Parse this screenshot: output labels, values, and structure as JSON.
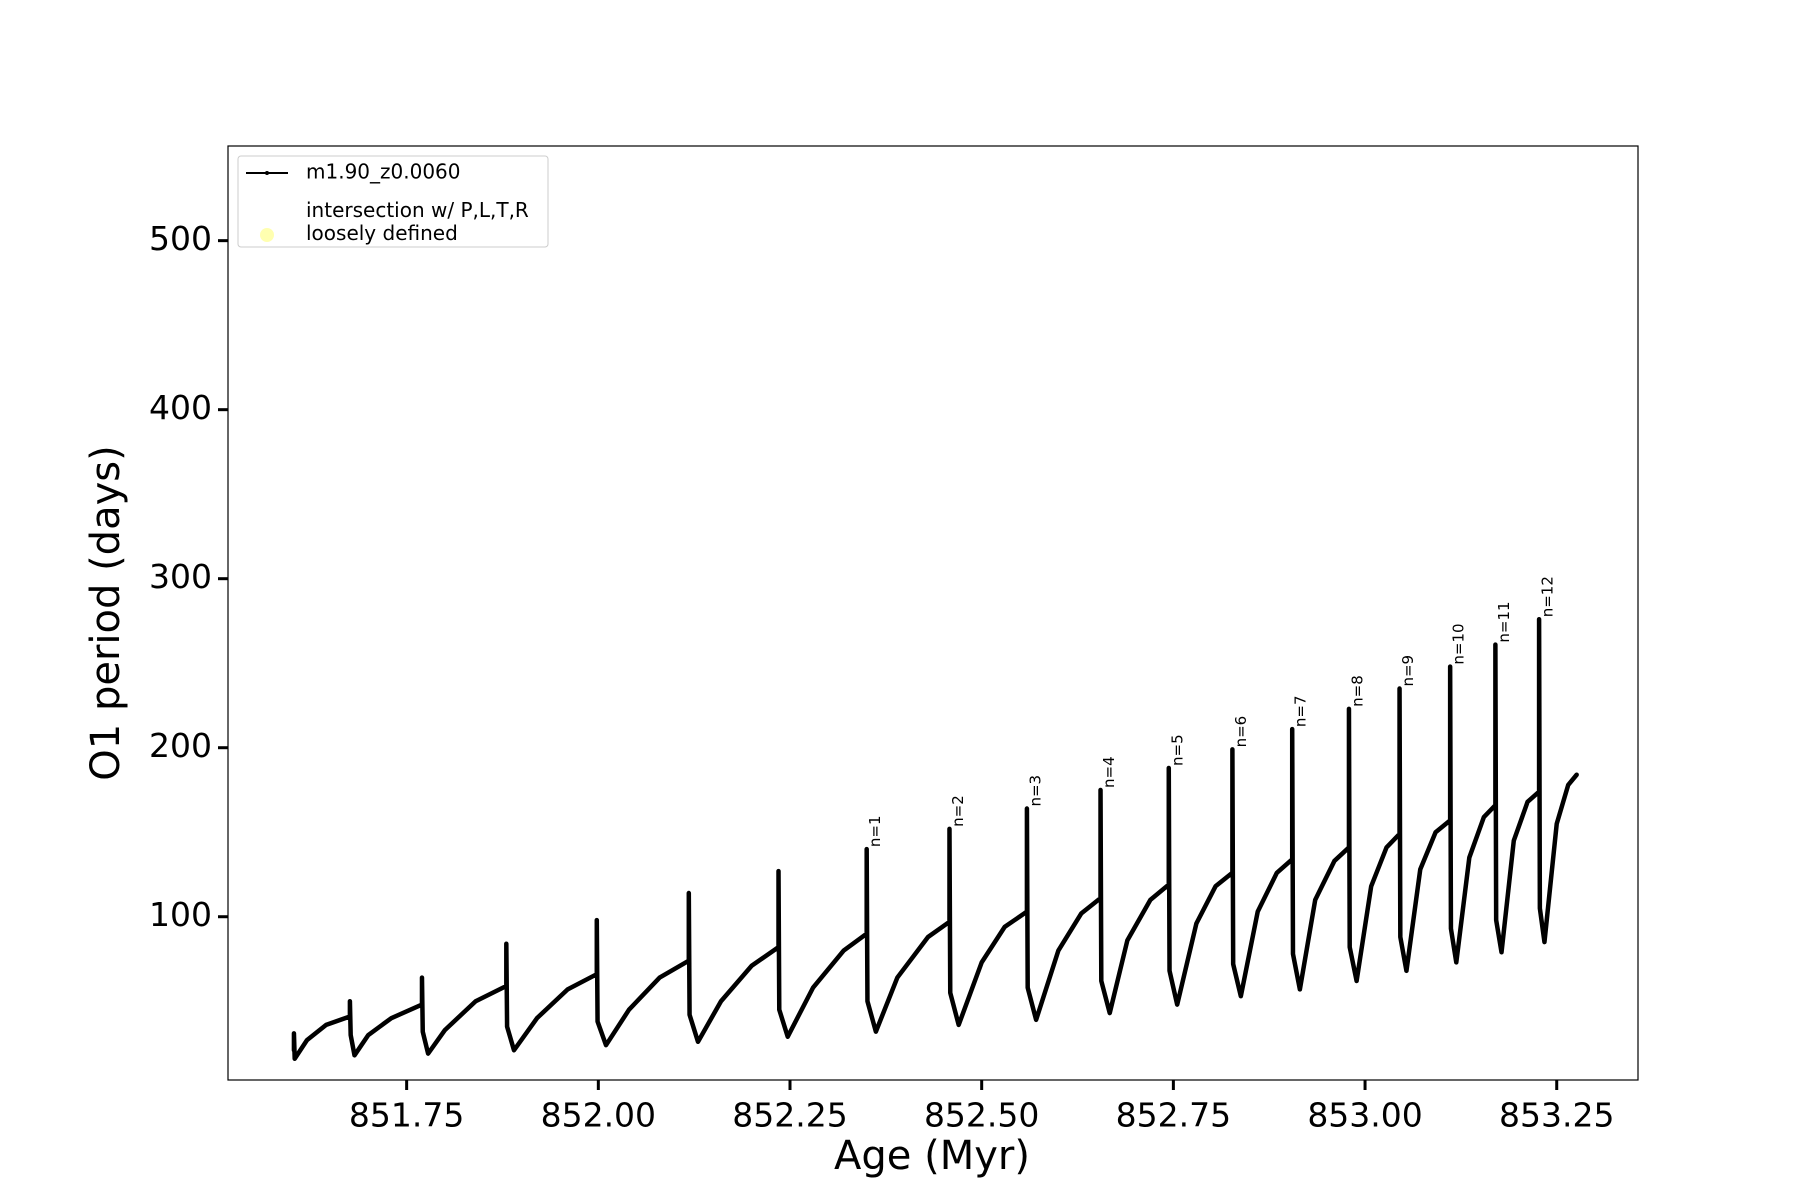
{
  "chart_data": {
    "type": "line",
    "xlabel": "Age (Myr)",
    "ylabel": "O1 period (days)",
    "xlim": [
      851.517,
      853.356
    ],
    "ylim": [
      3.4,
      556
    ],
    "xticks": [
      {
        "value": 851.75,
        "label": "851.75"
      },
      {
        "value": 852.0,
        "label": "852.00"
      },
      {
        "value": 852.25,
        "label": "852.25"
      },
      {
        "value": 852.5,
        "label": "852.50"
      },
      {
        "value": 852.75,
        "label": "852.75"
      },
      {
        "value": 853.0,
        "label": "853.00"
      },
      {
        "value": 853.25,
        "label": "853.25"
      }
    ],
    "yticks": [
      100,
      200,
      300,
      400,
      500
    ],
    "legend": "upper left",
    "series": [
      {
        "name": "m1.90_z0.0060",
        "color": "#000000",
        "x": [
          851.603,
          851.603,
          851.604,
          851.62,
          851.645,
          851.676,
          851.676,
          851.677,
          851.682,
          851.7,
          851.73,
          851.77,
          851.77,
          851.771,
          851.778,
          851.8,
          851.84,
          851.88,
          851.88,
          851.881,
          851.89,
          851.92,
          851.96,
          851.998,
          851.998,
          851.999,
          852.01,
          852.04,
          852.08,
          852.118,
          852.118,
          852.119,
          852.13,
          852.16,
          852.2,
          852.235,
          852.235,
          852.236,
          852.247,
          852.28,
          852.32,
          852.35,
          852.35,
          852.351,
          852.362,
          852.39,
          852.43,
          852.458,
          852.458,
          852.459,
          852.47,
          852.5,
          852.53,
          852.559,
          852.559,
          852.56,
          852.571,
          852.6,
          852.63,
          852.655,
          852.655,
          852.656,
          852.667,
          852.69,
          852.72,
          852.744,
          852.744,
          852.745,
          852.755,
          852.78,
          852.805,
          852.827,
          852.827,
          852.828,
          852.838,
          852.86,
          852.885,
          852.905,
          852.905,
          852.906,
          852.915,
          852.935,
          852.96,
          852.979,
          852.979,
          852.98,
          852.989,
          853.008,
          853.028,
          853.045,
          853.045,
          853.046,
          853.054,
          853.072,
          853.092,
          853.111,
          853.111,
          853.112,
          853.119,
          853.136,
          853.155,
          853.17,
          853.17,
          853.171,
          853.178,
          853.194,
          853.212,
          853.227,
          853.227,
          853.228,
          853.234,
          853.25,
          853.265,
          853.276
        ],
        "values": [
          21,
          31,
          16,
          27,
          36,
          41,
          50,
          30,
          18,
          30,
          40,
          48,
          64,
          32,
          19,
          33,
          50,
          59,
          84,
          35,
          21,
          40,
          57,
          66,
          98,
          38,
          24,
          45,
          64,
          74,
          114,
          42,
          26,
          50,
          71,
          82,
          127,
          45,
          29,
          58,
          80,
          90,
          140,
          50,
          32,
          64,
          88,
          97,
          152,
          55,
          36,
          73,
          94,
          103,
          164,
          58,
          39,
          80,
          102,
          111,
          175,
          62,
          43,
          86,
          110,
          119,
          188,
          68,
          48,
          96,
          118,
          126,
          199,
          72,
          53,
          103,
          126,
          134,
          211,
          78,
          57,
          110,
          133,
          141,
          223,
          82,
          62,
          118,
          141,
          149,
          235,
          88,
          68,
          128,
          150,
          157,
          248,
          93,
          73,
          135,
          159,
          166,
          261,
          98,
          79,
          145,
          168,
          174,
          276,
          105,
          85,
          155,
          178,
          184
        ]
      },
      {
        "name": "intersection w/ P,L,T,R\nloosely defined",
        "color": "#ffffb0",
        "x": [],
        "values": []
      }
    ],
    "annotations": [
      {
        "text": "n=1",
        "x": 852.35,
        "y": 140
      },
      {
        "text": "n=2",
        "x": 852.458,
        "y": 152
      },
      {
        "text": "n=3",
        "x": 852.559,
        "y": 164
      },
      {
        "text": "n=4",
        "x": 852.655,
        "y": 175
      },
      {
        "text": "n=5",
        "x": 852.744,
        "y": 188
      },
      {
        "text": "n=6",
        "x": 852.827,
        "y": 199
      },
      {
        "text": "n=7",
        "x": 852.905,
        "y": 211
      },
      {
        "text": "n=8",
        "x": 852.979,
        "y": 223
      },
      {
        "text": "n=9",
        "x": 853.045,
        "y": 235
      },
      {
        "text": "n=10",
        "x": 853.111,
        "y": 248
      },
      {
        "text": "n=11",
        "x": 853.17,
        "y": 261
      },
      {
        "text": "n=12",
        "x": 853.227,
        "y": 276
      }
    ]
  }
}
